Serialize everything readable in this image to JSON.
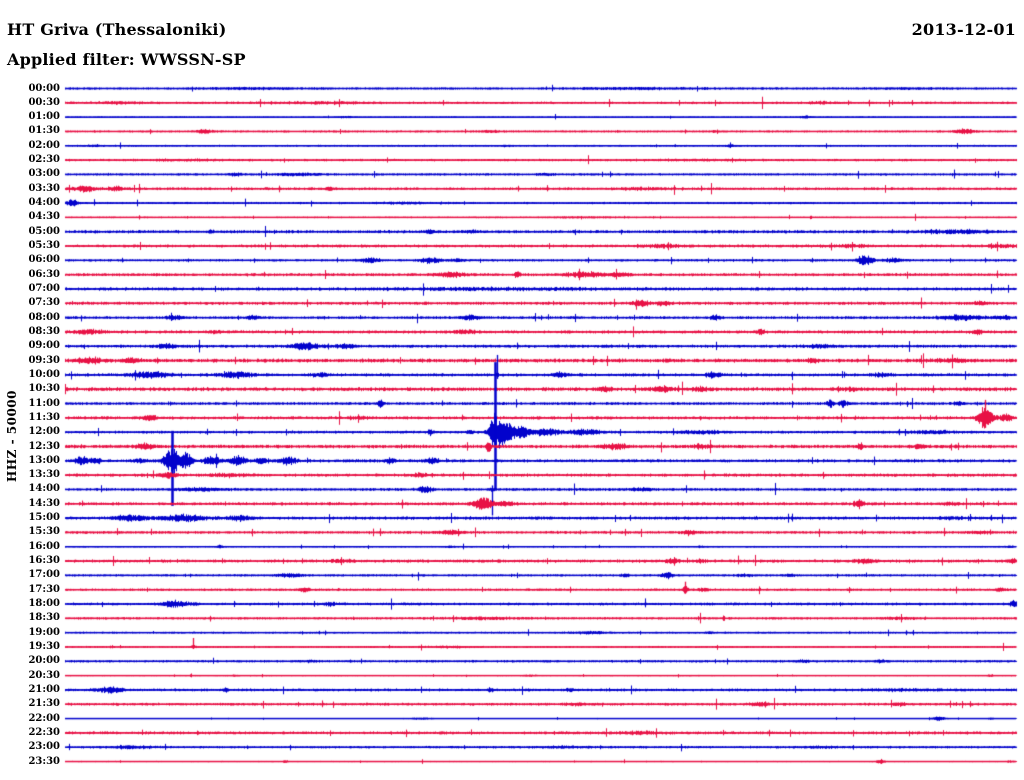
{
  "header": {
    "station_title": "HT Griva (Thessaloniki)",
    "filter_label": "Applied filter: WWSSN-SP",
    "date": "2013-12-01"
  },
  "y_axis_label": "HHZ - 50000",
  "colors": {
    "background": "#ffffff",
    "text": "#000000",
    "trace_blue": "#0202cc",
    "trace_red": "#e81145"
  },
  "chart_data": {
    "type": "seismogram-helicorder",
    "title": "HT Griva (Thessaloniki)",
    "station": "HT Griva",
    "location": "Thessaloniki",
    "date": "2013-12-01",
    "applied_filter": "WWSSN-SP",
    "channel": "HHZ",
    "scale": 50000,
    "minutes_per_row": 30,
    "rows_count": 48,
    "row_color_cycle": [
      "blue",
      "red"
    ],
    "legend_position": "none",
    "grid": false,
    "event_format": "[x_px, amplitude_px, half_width_px, optional_spike_up_px, optional_spike_down_px]",
    "rows": [
      {
        "t": "00:00",
        "color": "blue",
        "noise": 1.3,
        "events": [
          [
            250,
            0.8,
            60
          ],
          [
            640,
            0.8,
            80
          ],
          [
            900,
            0.7,
            40
          ]
        ]
      },
      {
        "t": "00:30",
        "color": "red",
        "noise": 1.4,
        "events": [
          [
            120,
            1,
            30
          ],
          [
            320,
            0.8,
            60
          ],
          [
            820,
            1,
            20
          ]
        ]
      },
      {
        "t": "01:00",
        "color": "blue",
        "noise": 0.9,
        "events": [
          [
            345,
            0.8,
            10
          ],
          [
            805,
            1.5,
            6
          ]
        ]
      },
      {
        "t": "01:30",
        "color": "red",
        "noise": 1.2,
        "events": [
          [
            205,
            2.5,
            8
          ],
          [
            490,
            1,
            10
          ],
          [
            715,
            1,
            6
          ],
          [
            965,
            3,
            10
          ]
        ]
      },
      {
        "t": "02:00",
        "color": "blue",
        "noise": 1.1,
        "events": [
          [
            95,
            1,
            8
          ],
          [
            505,
            1,
            6
          ],
          [
            730,
            1,
            8
          ]
        ]
      },
      {
        "t": "02:30",
        "color": "red",
        "noise": 1.4,
        "events": [
          [
            180,
            0.8,
            40
          ],
          [
            700,
            0.6,
            60
          ]
        ]
      },
      {
        "t": "03:00",
        "color": "blue",
        "noise": 1.3,
        "events": [
          [
            235,
            1.5,
            8
          ],
          [
            300,
            1.2,
            25
          ],
          [
            545,
            1,
            10
          ]
        ]
      },
      {
        "t": "03:30",
        "color": "red",
        "noise": 1.6,
        "events": [
          [
            85,
            3,
            12
          ],
          [
            115,
            2.2,
            10
          ],
          [
            330,
            1.5,
            8
          ],
          [
            640,
            1,
            30
          ]
        ]
      },
      {
        "t": "04:00",
        "color": "blue",
        "noise": 1.3,
        "events": [
          [
            72,
            3.5,
            6
          ],
          [
            410,
            0.8,
            30
          ]
        ]
      },
      {
        "t": "04:30",
        "color": "red",
        "noise": 0.9,
        "events": [
          [
            580,
            0.6,
            40
          ]
        ]
      },
      {
        "t": "05:00",
        "color": "blue",
        "noise": 1.8,
        "events": [
          [
            210,
            1.5,
            4
          ],
          [
            430,
            1.5,
            6
          ],
          [
            470,
            1.2,
            8
          ],
          [
            960,
            1.5,
            40
          ]
        ]
      },
      {
        "t": "05:30",
        "color": "red",
        "noise": 1.7,
        "events": [
          [
            660,
            1.5,
            20
          ],
          [
            850,
            1.2,
            30
          ],
          [
            1000,
            1.5,
            15
          ]
        ]
      },
      {
        "t": "06:00",
        "color": "blue",
        "noise": 1.4,
        "events": [
          [
            370,
            2.5,
            12
          ],
          [
            430,
            2.8,
            12
          ],
          [
            458,
            1.8,
            8
          ],
          [
            865,
            6,
            9
          ],
          [
            893,
            2,
            12
          ]
        ]
      },
      {
        "t": "06:30",
        "color": "red",
        "noise": 1.7,
        "events": [
          [
            450,
            2.5,
            18
          ],
          [
            517,
            4,
            3
          ],
          [
            585,
            2.5,
            25
          ],
          [
            620,
            2,
            10
          ]
        ]
      },
      {
        "t": "07:00",
        "color": "blue",
        "noise": 1.9,
        "events": [
          [
            500,
            0.8,
            120
          ]
        ]
      },
      {
        "t": "07:30",
        "color": "red",
        "noise": 1.8,
        "events": [
          [
            640,
            3,
            10
          ],
          [
            663,
            2,
            8
          ],
          [
            980,
            1.5,
            10
          ]
        ]
      },
      {
        "t": "08:00",
        "color": "blue",
        "noise": 1.6,
        "events": [
          [
            175,
            2.2,
            10
          ],
          [
            252,
            2,
            8
          ],
          [
            470,
            2.2,
            12
          ],
          [
            715,
            2.5,
            6
          ],
          [
            960,
            2.5,
            25
          ],
          [
            1002,
            2,
            10
          ]
        ]
      },
      {
        "t": "08:30",
        "color": "red",
        "noise": 1.8,
        "events": [
          [
            90,
            2,
            15
          ],
          [
            215,
            1.5,
            8
          ],
          [
            465,
            2,
            12
          ],
          [
            760,
            2.5,
            5
          ],
          [
            977,
            2.5,
            6
          ]
        ]
      },
      {
        "t": "09:00",
        "color": "blue",
        "noise": 1.8,
        "events": [
          [
            165,
            2,
            12
          ],
          [
            305,
            3.5,
            18
          ],
          [
            345,
            2,
            10
          ],
          [
            820,
            1.5,
            15
          ]
        ]
      },
      {
        "t": "09:30",
        "color": "red",
        "noise": 2.2,
        "events": [
          [
            90,
            3,
            15
          ],
          [
            130,
            2.5,
            10
          ],
          [
            812,
            2,
            6
          ],
          [
            950,
            1.5,
            20
          ]
        ]
      },
      {
        "t": "10:00",
        "color": "blue",
        "noise": 1.8,
        "events": [
          [
            150,
            3,
            22
          ],
          [
            235,
            3,
            20
          ],
          [
            320,
            2,
            10
          ],
          [
            497,
            1.5,
            2,
            20,
            4
          ],
          [
            560,
            2,
            10
          ],
          [
            713,
            3,
            8
          ],
          [
            880,
            1.5,
            12
          ]
        ]
      },
      {
        "t": "10:30",
        "color": "red",
        "noise": 2.2,
        "events": [
          [
            605,
            2.5,
            8
          ],
          [
            662,
            3,
            10
          ],
          [
            700,
            1.5,
            10
          ],
          [
            850,
            1.5,
            8
          ]
        ]
      },
      {
        "t": "11:00",
        "color": "blue",
        "noise": 1.6,
        "events": [
          [
            380,
            4,
            3
          ],
          [
            830,
            4,
            4
          ],
          [
            843,
            4,
            4
          ],
          [
            958,
            2,
            5
          ]
        ]
      },
      {
        "t": "11:30",
        "color": "red",
        "noise": 1.8,
        "events": [
          [
            150,
            2.5,
            8
          ],
          [
            360,
            1.5,
            10
          ],
          [
            985,
            11,
            9,
            18,
            10
          ],
          [
            1006,
            4,
            8
          ]
        ]
      },
      {
        "t": "12:00",
        "color": "blue",
        "noise": 1.6,
        "events": [
          [
            430,
            3,
            3
          ],
          [
            470,
            2,
            4
          ],
          [
            495,
            18,
            7,
            70,
            58
          ],
          [
            505,
            12,
            8
          ],
          [
            520,
            7,
            10
          ],
          [
            545,
            4,
            15
          ],
          [
            585,
            2.5,
            20
          ],
          [
            700,
            1.5,
            30
          ],
          [
            930,
            1.5,
            30
          ]
        ]
      },
      {
        "t": "12:30",
        "color": "red",
        "noise": 2.0,
        "events": [
          [
            145,
            3,
            10
          ],
          [
            488,
            5,
            3
          ],
          [
            615,
            3,
            15
          ],
          [
            700,
            2,
            8
          ],
          [
            860,
            3,
            4
          ],
          [
            920,
            2,
            8
          ]
        ]
      },
      {
        "t": "13:00",
        "color": "blue",
        "noise": 1.8,
        "events": [
          [
            82,
            5,
            8
          ],
          [
            96,
            3,
            6
          ],
          [
            140,
            2,
            8
          ],
          [
            172,
            14,
            9,
            30,
            45
          ],
          [
            186,
            8,
            8
          ],
          [
            212,
            4,
            10
          ],
          [
            237,
            4.5,
            10
          ],
          [
            262,
            3,
            8
          ],
          [
            288,
            4,
            10
          ],
          [
            390,
            2.5,
            6
          ],
          [
            432,
            3,
            8
          ]
        ]
      },
      {
        "t": "13:30",
        "color": "red",
        "noise": 1.8,
        "events": [
          [
            168,
            3,
            10
          ],
          [
            230,
            1.5,
            20
          ],
          [
            420,
            2,
            8
          ]
        ]
      },
      {
        "t": "14:00",
        "color": "blue",
        "noise": 1.6,
        "events": [
          [
            200,
            1.5,
            30
          ],
          [
            425,
            3.5,
            8
          ],
          [
            492,
            2,
            4,
            4,
            26
          ],
          [
            640,
            1.5,
            15
          ]
        ]
      },
      {
        "t": "14:30",
        "color": "red",
        "noise": 1.8,
        "events": [
          [
            482,
            7,
            11
          ],
          [
            505,
            2,
            10
          ],
          [
            860,
            3.5,
            4
          ],
          [
            950,
            1.5,
            10
          ]
        ]
      },
      {
        "t": "15:00",
        "color": "blue",
        "noise": 1.8,
        "events": [
          [
            130,
            3,
            20
          ],
          [
            185,
            3.5,
            25
          ],
          [
            240,
            2.5,
            15
          ],
          [
            950,
            1,
            20
          ]
        ]
      },
      {
        "t": "15:30",
        "color": "red",
        "noise": 1.6,
        "events": [
          [
            450,
            2,
            15
          ],
          [
            690,
            1.5,
            10
          ],
          [
            980,
            1.2,
            15
          ]
        ]
      },
      {
        "t": "16:00",
        "color": "blue",
        "noise": 0.9,
        "events": [
          [
            220,
            1.5,
            4
          ],
          [
            450,
            1.2,
            5
          ],
          [
            700,
            1.2,
            4
          ],
          [
            1010,
            1,
            5
          ]
        ]
      },
      {
        "t": "16:30",
        "color": "red",
        "noise": 1.8,
        "events": [
          [
            340,
            1.5,
            12
          ],
          [
            672,
            2.5,
            8
          ],
          [
            700,
            1.5,
            6
          ],
          [
            865,
            2,
            12
          ],
          [
            1012,
            2,
            5
          ]
        ]
      },
      {
        "t": "17:00",
        "color": "blue",
        "noise": 1.3,
        "events": [
          [
            290,
            2,
            15
          ],
          [
            625,
            2.5,
            4
          ],
          [
            667,
            3.5,
            7
          ],
          [
            745,
            1.5,
            8
          ],
          [
            790,
            1.5,
            6
          ]
        ]
      },
      {
        "t": "17:30",
        "color": "red",
        "noise": 1.4,
        "events": [
          [
            303,
            2.5,
            6
          ],
          [
            685,
            4,
            3,
            8,
            4
          ],
          [
            703,
            2,
            6
          ],
          [
            1000,
            2,
            6
          ]
        ]
      },
      {
        "t": "18:00",
        "color": "blue",
        "noise": 1.6,
        "events": [
          [
            175,
            3,
            18
          ],
          [
            330,
            1.5,
            10
          ],
          [
            1013,
            3,
            5
          ]
        ]
      },
      {
        "t": "18:30",
        "color": "red",
        "noise": 1.4,
        "events": [
          [
            480,
            1,
            40
          ],
          [
            900,
            1,
            20
          ]
        ]
      },
      {
        "t": "19:00",
        "color": "blue",
        "noise": 1.1,
        "events": [
          [
            590,
            1.5,
            20
          ],
          [
            710,
            1.5,
            5
          ]
        ]
      },
      {
        "t": "19:30",
        "color": "red",
        "noise": 1.1,
        "events": [
          [
            193,
            2,
            3,
            9,
            2
          ],
          [
            450,
            0.8,
            30
          ]
        ]
      },
      {
        "t": "20:00",
        "color": "blue",
        "noise": 1.4,
        "events": [
          [
            310,
            1,
            10
          ],
          [
            800,
            1.2,
            10
          ],
          [
            880,
            1.5,
            8
          ]
        ]
      },
      {
        "t": "20:30",
        "color": "red",
        "noise": 0.7,
        "events": [
          [
            235,
            1,
            5
          ],
          [
            530,
            0.8,
            8
          ],
          [
            990,
            1.5,
            3
          ]
        ]
      },
      {
        "t": "21:00",
        "color": "blue",
        "noise": 1.6,
        "events": [
          [
            110,
            3,
            15
          ],
          [
            225,
            2,
            4
          ],
          [
            490,
            2,
            4
          ],
          [
            570,
            1.5,
            5
          ],
          [
            900,
            1,
            40
          ]
        ]
      },
      {
        "t": "21:30",
        "color": "red",
        "noise": 1.6,
        "events": [
          [
            580,
            1.2,
            15
          ],
          [
            760,
            2,
            10
          ],
          [
            900,
            1.5,
            8
          ]
        ]
      },
      {
        "t": "22:00",
        "color": "blue",
        "noise": 0.5,
        "events": [
          [
            420,
            1,
            15
          ],
          [
            938,
            2.5,
            8
          ],
          [
            990,
            1,
            4
          ]
        ]
      },
      {
        "t": "22:30",
        "color": "red",
        "noise": 1.7,
        "events": [
          [
            640,
            1.5,
            20
          ]
        ]
      },
      {
        "t": "23:00",
        "color": "blue",
        "noise": 1.4,
        "events": [
          [
            130,
            1.5,
            25
          ],
          [
            560,
            1,
            30
          ],
          [
            820,
            1,
            20
          ]
        ]
      },
      {
        "t": "23:30",
        "color": "red",
        "noise": 0.7,
        "events": [
          [
            285,
            1.5,
            3
          ],
          [
            880,
            2.5,
            5
          ],
          [
            1010,
            1,
            5
          ]
        ]
      }
    ]
  }
}
